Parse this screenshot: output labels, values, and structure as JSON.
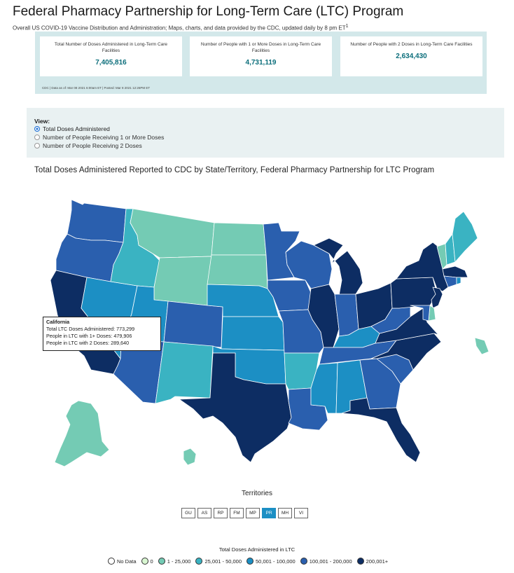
{
  "page": {
    "title": "Federal Pharmacy Partnership for Long-Term Care (LTC) Program",
    "subtitle": "Overall US COVID-19 Vaccine Distribution and Administration; Maps, charts, and data provided by the CDC, updated daily by 8 pm ET",
    "subtitle_sup": "1"
  },
  "stats": {
    "cards": [
      {
        "label": "Total Number of Doses Administered in Long-Term Care Facilities",
        "value": "7,405,816"
      },
      {
        "label": "Number of People with 1 or More Doses in Long-Term Care Facilities",
        "value": "4,731,119"
      },
      {
        "label": "Number of People with 2 Doses in Long-Term Care Facilities",
        "value": "2,634,430"
      }
    ],
    "note": "CDC | Data as of: Mar 08 2021 6:00am ET | Posted: Mar 8 2021 12:26PM ET"
  },
  "view": {
    "title": "View:",
    "options": [
      "Total Doses Administered",
      "Number of People Receiving 1 or More Doses",
      "Number of People Receiving 2 Doses"
    ],
    "selected": 0
  },
  "map": {
    "title": "Total Doses Administered Reported to CDC by State/Territory, Federal Pharmacy Partnership for LTC Program",
    "colors": {
      "no_data": "#ffffff",
      "zero": "#d9f7d2",
      "c1": "#74cbb4",
      "c2": "#3ab3c2",
      "c3": "#1c8fc4",
      "c4": "#2a5fae",
      "c5": "#0d2d63",
      "border": "#ffffff"
    },
    "state_classes": {
      "WA": "c4",
      "OR": "c4",
      "CA": "c5",
      "NV": "c3",
      "ID": "c2",
      "MT": "c1",
      "WY": "c1",
      "UT": "c3",
      "AZ": "c4",
      "CO": "c4",
      "NM": "c2",
      "ND": "c1",
      "SD": "c1",
      "NE": "c3",
      "KS": "c3",
      "OK": "c3",
      "TX": "c5",
      "MN": "c4",
      "IA": "c4",
      "MO": "c4",
      "AR": "c2",
      "LA": "c4",
      "WI": "c4",
      "IL": "c5",
      "MI": "c5",
      "IN": "c4",
      "OH": "c5",
      "KY": "c3",
      "TN": "c4",
      "MS": "c3",
      "AL": "c3",
      "GA": "c4",
      "FL": "c5",
      "SC": "c4",
      "NC": "c5",
      "VA": "c5",
      "WV": "c4",
      "PA": "c5",
      "NY": "c5",
      "ME": "c2",
      "VT": "c1",
      "NH": "c2",
      "MA": "c5",
      "CT": "c4",
      "RI": "c3",
      "NJ": "c5",
      "DE": "c1",
      "MD": "c4",
      "AK": "c1",
      "HI": "c1"
    },
    "territory_classes": {
      "PR": "c1"
    }
  },
  "tooltip": {
    "state": "California",
    "line1": "Total LTC Doses Administered: 773,299",
    "line2": "People in LTC with 1+ Doses: 479,906",
    "line3": "People in LTC with 2 Doses: 289,640"
  },
  "territories": {
    "title": "Territories",
    "items": [
      "GU",
      "AS",
      "RP",
      "FM",
      "MP",
      "PR",
      "MH",
      "VI"
    ],
    "active": "PR"
  },
  "legend": {
    "title": "Total Doses Administered in LTC",
    "items": [
      {
        "label": "No Data",
        "color": "#ffffff"
      },
      {
        "label": "0",
        "color": "#d9f7d2"
      },
      {
        "label": "1 - 25,000",
        "color": "#74cbb4"
      },
      {
        "label": "25,001 - 50,000",
        "color": "#3ab3c2"
      },
      {
        "label": "50,001 - 100,000",
        "color": "#1c8fc4"
      },
      {
        "label": "100,001 - 200,000",
        "color": "#2a5fae"
      },
      {
        "label": "200,001+",
        "color": "#0d2d63"
      }
    ]
  }
}
